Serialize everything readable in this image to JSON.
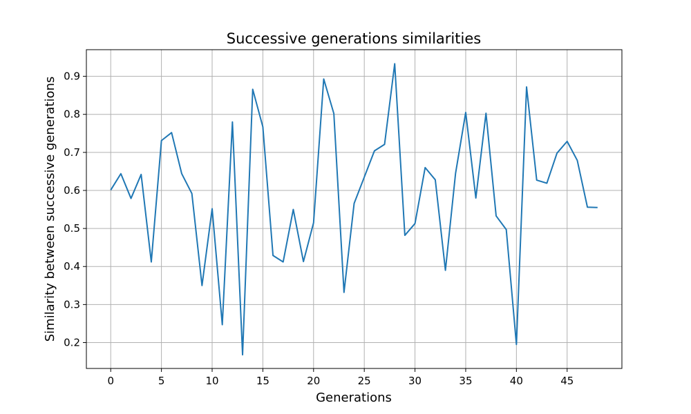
{
  "chart_data": {
    "type": "line",
    "title": "Successive generations similarities",
    "xlabel": "Generations",
    "ylabel": "Similarity between successive generations",
    "xlim": [
      -2.4,
      50.4
    ],
    "ylim": [
      0.132,
      0.97
    ],
    "grid": true,
    "x_ticks": [
      0,
      5,
      10,
      15,
      20,
      25,
      30,
      35,
      40,
      45
    ],
    "y_ticks": [
      0.2,
      0.3,
      0.4,
      0.5,
      0.6,
      0.7,
      0.8,
      0.9
    ],
    "series": [
      {
        "color": "#1f77b4",
        "x": [
          0,
          1,
          2,
          3,
          4,
          5,
          6,
          7,
          8,
          9,
          10,
          11,
          12,
          13,
          14,
          15,
          16,
          17,
          18,
          19,
          20,
          21,
          22,
          23,
          24,
          25,
          26,
          27,
          28,
          29,
          30,
          31,
          32,
          33,
          34,
          35,
          36,
          37,
          38,
          39,
          40,
          41,
          42,
          43,
          44,
          45,
          46,
          47,
          48
        ],
        "values": [
          0.601,
          0.644,
          0.579,
          0.642,
          0.412,
          0.731,
          0.752,
          0.644,
          0.592,
          0.35,
          0.552,
          0.247,
          0.78,
          0.168,
          0.866,
          0.767,
          0.429,
          0.412,
          0.55,
          0.413,
          0.515,
          0.893,
          0.802,
          0.332,
          0.566,
          0.635,
          0.704,
          0.721,
          0.933,
          0.482,
          0.513,
          0.66,
          0.628,
          0.39,
          0.645,
          0.805,
          0.58,
          0.803,
          0.533,
          0.497,
          0.195,
          0.872,
          0.627,
          0.619,
          0.698,
          0.729,
          0.679,
          0.556,
          0.555
        ]
      }
    ]
  }
}
